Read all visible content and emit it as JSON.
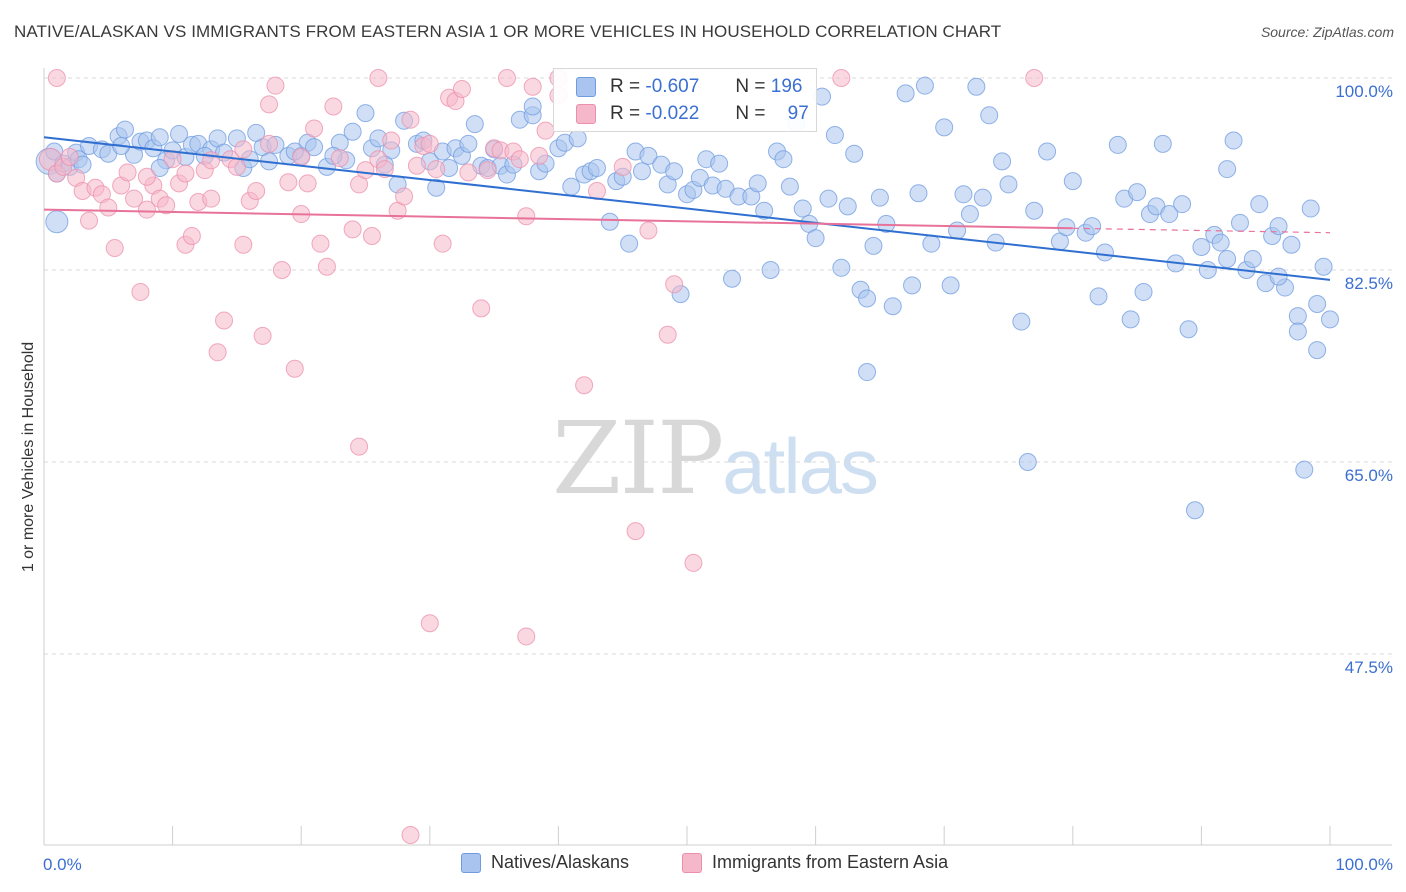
{
  "title": "NATIVE/ALASKAN VS IMMIGRANTS FROM EASTERN ASIA 1 OR MORE VEHICLES IN HOUSEHOLD CORRELATION CHART",
  "source": "Source: ZipAtlas.com",
  "watermark": {
    "zip": "ZIP",
    "atlas": "atlas"
  },
  "stats": [
    {
      "r_label": "R =",
      "r_value": "-0.607",
      "n_label": "N =",
      "n_value": "196"
    },
    {
      "r_label": "R =",
      "r_value": "-0.022",
      "n_label": "N =",
      "n_value": "97"
    }
  ],
  "colors": {
    "blue_fill": "#a9c4ee",
    "blue_stroke": "#6f9be0",
    "blue_line": "#2f6fd0",
    "pink_fill": "#f5b8ca",
    "pink_stroke": "#ec8fab",
    "pink_line": "#e8729a",
    "tick_text": "#3b6fd1",
    "grid": "#d9d9d9"
  },
  "chart_data": {
    "type": "scatter",
    "title": "NATIVE/ALASKAN VS IMMIGRANTS FROM EASTERN ASIA 1 OR MORE VEHICLES IN HOUSEHOLD CORRELATION CHART",
    "xlabel": "",
    "ylabel": "1 or more Vehicles in Household",
    "xlim": [
      0,
      100
    ],
    "ylim": [
      30,
      101.5
    ],
    "x_tick_labels": [
      "0.0%",
      "100.0%"
    ],
    "y_ticks": [
      47.5,
      65.0,
      82.5,
      100.0
    ],
    "y_tick_labels": [
      "47.5%",
      "65.0%",
      "82.5%",
      "100.0%"
    ],
    "grid": "horizontal dashed",
    "legend_position": "bottom-center",
    "series": [
      {
        "name": "Natives/Alaskans",
        "color": "#a9c4ee",
        "trend": {
          "x": [
            0,
            100
          ],
          "y": [
            94.6,
            81.6
          ]
        },
        "points": [
          [
            0.4,
            92.4
          ],
          [
            0.8,
            93.3
          ],
          [
            1.0,
            91.3
          ],
          [
            1.5,
            92.2
          ],
          [
            2.0,
            91.9
          ],
          [
            2.5,
            93.2
          ],
          [
            2.7,
            92.6
          ],
          [
            3.5,
            93.8
          ],
          [
            4.5,
            93.5
          ],
          [
            5.0,
            93.1
          ],
          [
            5.8,
            94.7
          ],
          [
            6.3,
            95.3
          ],
          [
            7.0,
            93.0
          ],
          [
            7.5,
            94.2
          ],
          [
            8.0,
            94.3
          ],
          [
            8.5,
            93.6
          ],
          [
            9.0,
            94.6
          ],
          [
            9.5,
            92.5
          ],
          [
            10.0,
            93.4
          ],
          [
            10.5,
            94.9
          ],
          [
            11.0,
            92.8
          ],
          [
            11.5,
            93.9
          ],
          [
            12.0,
            94.0
          ],
          [
            13.0,
            93.5
          ],
          [
            13.5,
            94.5
          ],
          [
            14.0,
            93.2
          ],
          [
            15.0,
            94.5
          ],
          [
            15.5,
            91.8
          ],
          [
            16.0,
            92.6
          ],
          [
            17.0,
            93.7
          ],
          [
            17.5,
            92.4
          ],
          [
            18.0,
            93.9
          ],
          [
            19.0,
            92.9
          ],
          [
            20.0,
            92.9
          ],
          [
            20.5,
            94.1
          ],
          [
            21.0,
            93.7
          ],
          [
            22.0,
            91.9
          ],
          [
            23.0,
            94.1
          ],
          [
            23.5,
            92.5
          ],
          [
            24.0,
            95.1
          ],
          [
            25.0,
            96.8
          ],
          [
            25.5,
            93.6
          ],
          [
            26.0,
            94.5
          ],
          [
            27.0,
            93.4
          ],
          [
            27.5,
            90.3
          ],
          [
            28.0,
            96.1
          ],
          [
            29.0,
            94.0
          ],
          [
            29.5,
            94.3
          ],
          [
            30.0,
            92.4
          ],
          [
            31.0,
            93.3
          ],
          [
            31.5,
            91.8
          ],
          [
            32.0,
            93.6
          ],
          [
            32.5,
            92.9
          ],
          [
            33.0,
            94.0
          ],
          [
            34.0,
            92.0
          ],
          [
            34.5,
            91.8
          ],
          [
            35.0,
            93.5
          ],
          [
            35.5,
            92.0
          ],
          [
            36.0,
            91.2
          ],
          [
            36.5,
            92.1
          ],
          [
            37.0,
            96.2
          ],
          [
            38.0,
            96.6
          ],
          [
            38.5,
            91.5
          ],
          [
            39.0,
            92.2
          ],
          [
            40.0,
            93.6
          ],
          [
            40.5,
            94.1
          ],
          [
            41.0,
            90.1
          ],
          [
            42.0,
            91.2
          ],
          [
            42.5,
            91.5
          ],
          [
            43.0,
            91.8
          ],
          [
            44.0,
            86.9
          ],
          [
            44.5,
            90.6
          ],
          [
            45.0,
            91.0
          ],
          [
            46.0,
            93.3
          ],
          [
            46.5,
            91.5
          ],
          [
            47.0,
            92.9
          ],
          [
            48.0,
            92.1
          ],
          [
            48.5,
            90.3
          ],
          [
            49.0,
            91.5
          ],
          [
            50.0,
            89.4
          ],
          [
            50.5,
            89.8
          ],
          [
            51.0,
            90.9
          ],
          [
            51.5,
            92.6
          ],
          [
            52.0,
            90.2
          ],
          [
            52.5,
            92.2
          ],
          [
            53.0,
            89.9
          ],
          [
            54.0,
            89.2
          ],
          [
            55.0,
            89.2
          ],
          [
            55.5,
            90.4
          ],
          [
            56.0,
            87.9
          ],
          [
            57.0,
            93.3
          ],
          [
            57.5,
            92.6
          ],
          [
            58.0,
            90.1
          ],
          [
            58.5,
            95.9
          ],
          [
            59.0,
            88.1
          ],
          [
            59.5,
            86.7
          ],
          [
            60.0,
            85.4
          ],
          [
            61.0,
            89.0
          ],
          [
            61.5,
            94.8
          ],
          [
            62.0,
            82.7
          ],
          [
            62.5,
            88.3
          ],
          [
            63.0,
            93.1
          ],
          [
            63.5,
            80.7
          ],
          [
            64.0,
            79.9
          ],
          [
            64.5,
            84.7
          ],
          [
            65.0,
            89.1
          ],
          [
            65.5,
            86.7
          ],
          [
            66.0,
            79.2
          ],
          [
            67.0,
            98.6
          ],
          [
            67.5,
            81.1
          ],
          [
            68.0,
            89.5
          ],
          [
            69.0,
            84.9
          ],
          [
            70.0,
            95.5
          ],
          [
            70.5,
            81.1
          ],
          [
            71.0,
            86.1
          ],
          [
            71.5,
            89.4
          ],
          [
            72.0,
            87.6
          ],
          [
            72.5,
            99.2
          ],
          [
            73.0,
            89.1
          ],
          [
            73.5,
            96.6
          ],
          [
            74.5,
            92.4
          ],
          [
            75.0,
            90.3
          ],
          [
            76.0,
            77.8
          ],
          [
            76.5,
            65.0
          ],
          [
            77.0,
            87.9
          ],
          [
            78.0,
            93.3
          ],
          [
            79.0,
            85.1
          ],
          [
            80.0,
            90.6
          ],
          [
            81.0,
            85.9
          ],
          [
            81.5,
            86.5
          ],
          [
            82.0,
            80.1
          ],
          [
            82.5,
            84.1
          ],
          [
            83.5,
            93.9
          ],
          [
            84.0,
            89.0
          ],
          [
            85.0,
            89.6
          ],
          [
            85.5,
            80.5
          ],
          [
            86.0,
            87.6
          ],
          [
            86.5,
            88.3
          ],
          [
            87.0,
            94.0
          ],
          [
            87.5,
            87.6
          ],
          [
            88.5,
            88.5
          ],
          [
            89.0,
            77.1
          ],
          [
            89.5,
            60.6
          ],
          [
            90.0,
            84.6
          ],
          [
            90.5,
            82.5
          ],
          [
            91.0,
            85.7
          ],
          [
            91.5,
            85.0
          ],
          [
            92.0,
            91.7
          ],
          [
            92.5,
            94.3
          ],
          [
            93.0,
            86.8
          ],
          [
            93.5,
            82.5
          ],
          [
            94.0,
            83.5
          ],
          [
            94.5,
            88.5
          ],
          [
            95.0,
            81.3
          ],
          [
            95.5,
            85.6
          ],
          [
            96.0,
            86.5
          ],
          [
            96.5,
            80.9
          ],
          [
            97.0,
            84.8
          ],
          [
            97.5,
            78.3
          ],
          [
            98.0,
            64.3
          ],
          [
            98.5,
            88.1
          ],
          [
            99.0,
            79.4
          ],
          [
            99.5,
            82.8
          ],
          [
            100.0,
            78.0
          ],
          [
            1.0,
            86.9
          ],
          [
            3.0,
            92.1
          ],
          [
            6.0,
            93.8
          ],
          [
            9.0,
            91.8
          ],
          [
            12.5,
            92.9
          ],
          [
            16.5,
            95.0
          ],
          [
            19.5,
            93.3
          ],
          [
            22.5,
            92.9
          ],
          [
            26.5,
            92.1
          ],
          [
            30.5,
            90.0
          ],
          [
            33.5,
            95.8
          ],
          [
            38.0,
            97.4
          ],
          [
            41.5,
            94.5
          ],
          [
            45.5,
            84.9
          ],
          [
            49.5,
            80.3
          ],
          [
            53.5,
            81.7
          ],
          [
            56.5,
            82.5
          ],
          [
            60.5,
            98.3
          ],
          [
            64.0,
            73.2
          ],
          [
            68.5,
            99.3
          ],
          [
            74.0,
            85.0
          ],
          [
            79.5,
            86.4
          ],
          [
            84.5,
            78.0
          ],
          [
            88.0,
            83.1
          ],
          [
            92.0,
            83.5
          ],
          [
            96.0,
            81.9
          ],
          [
            97.5,
            76.9
          ],
          [
            99.0,
            75.2
          ]
        ]
      },
      {
        "name": "Immigrants from Eastern Asia",
        "color": "#f5b8ca",
        "trend": {
          "x": [
            0,
            80
          ],
          "y": [
            88.0,
            86.3
          ]
        },
        "trend_dashed": {
          "x": [
            80,
            100
          ],
          "y": [
            86.3,
            85.9
          ]
        },
        "points": [
          [
            0.5,
            92.6
          ],
          [
            1.0,
            91.3
          ],
          [
            1.5,
            91.9
          ],
          [
            2.0,
            92.8
          ],
          [
            2.5,
            90.9
          ],
          [
            3.0,
            89.7
          ],
          [
            3.5,
            87.0
          ],
          [
            4.0,
            90.0
          ],
          [
            4.5,
            89.4
          ],
          [
            5.0,
            88.2
          ],
          [
            5.5,
            84.5
          ],
          [
            6.0,
            90.2
          ],
          [
            6.5,
            91.4
          ],
          [
            7.0,
            89.0
          ],
          [
            7.5,
            80.5
          ],
          [
            8.0,
            88.0
          ],
          [
            8.5,
            90.2
          ],
          [
            9.0,
            89.0
          ],
          [
            9.5,
            88.4
          ],
          [
            10.0,
            92.6
          ],
          [
            10.5,
            90.4
          ],
          [
            11.0,
            84.8
          ],
          [
            11.5,
            85.6
          ],
          [
            12.0,
            88.7
          ],
          [
            12.5,
            91.6
          ],
          [
            13.0,
            92.5
          ],
          [
            13.5,
            75.0
          ],
          [
            14.0,
            77.9
          ],
          [
            14.5,
            92.6
          ],
          [
            15.0,
            91.9
          ],
          [
            15.5,
            84.8
          ],
          [
            16.0,
            88.8
          ],
          [
            16.5,
            89.7
          ],
          [
            17.0,
            76.5
          ],
          [
            17.5,
            97.6
          ],
          [
            18.0,
            99.3
          ],
          [
            18.5,
            82.5
          ],
          [
            19.0,
            90.5
          ],
          [
            19.5,
            73.5
          ],
          [
            20.0,
            92.8
          ],
          [
            20.5,
            90.4
          ],
          [
            21.0,
            95.4
          ],
          [
            21.5,
            84.9
          ],
          [
            22.0,
            82.8
          ],
          [
            22.5,
            97.4
          ],
          [
            23.0,
            92.7
          ],
          [
            24.0,
            86.2
          ],
          [
            24.5,
            90.3
          ],
          [
            25.0,
            91.6
          ],
          [
            25.5,
            85.6
          ],
          [
            26.0,
            92.6
          ],
          [
            26.5,
            91.7
          ],
          [
            27.0,
            94.3
          ],
          [
            27.5,
            87.9
          ],
          [
            28.0,
            89.2
          ],
          [
            28.5,
            96.2
          ],
          [
            29.0,
            92.0
          ],
          [
            29.5,
            93.8
          ],
          [
            30.0,
            94.0
          ],
          [
            30.5,
            91.7
          ],
          [
            31.0,
            84.9
          ],
          [
            31.5,
            98.2
          ],
          [
            32.0,
            97.9
          ],
          [
            32.5,
            99.0
          ],
          [
            33.0,
            91.4
          ],
          [
            34.0,
            79.0
          ],
          [
            34.5,
            91.6
          ],
          [
            35.0,
            93.6
          ],
          [
            35.5,
            93.4
          ],
          [
            36.5,
            93.3
          ],
          [
            37.0,
            92.6
          ],
          [
            37.5,
            87.4
          ],
          [
            38.0,
            99.2
          ],
          [
            38.5,
            92.9
          ],
          [
            39.0,
            95.2
          ],
          [
            40.0,
            98.4
          ],
          [
            42.0,
            72.0
          ],
          [
            43.0,
            89.7
          ],
          [
            45.0,
            91.9
          ],
          [
            46.0,
            58.7
          ],
          [
            47.0,
            86.1
          ],
          [
            48.5,
            76.6
          ],
          [
            49.0,
            81.2
          ],
          [
            50.5,
            55.8
          ],
          [
            1.0,
            100.0
          ],
          [
            8.0,
            91.0
          ],
          [
            11.0,
            91.3
          ],
          [
            13.0,
            89.0
          ],
          [
            15.5,
            93.5
          ],
          [
            17.5,
            94.0
          ],
          [
            20.0,
            87.6
          ],
          [
            24.5,
            66.4
          ],
          [
            26.0,
            100.0
          ],
          [
            28.5,
            31.0
          ],
          [
            30.0,
            50.3
          ],
          [
            36.0,
            100.0
          ],
          [
            37.5,
            49.1
          ],
          [
            40.0,
            100.0
          ],
          [
            62.0,
            100.0
          ],
          [
            77.0,
            100.0
          ]
        ]
      }
    ]
  }
}
